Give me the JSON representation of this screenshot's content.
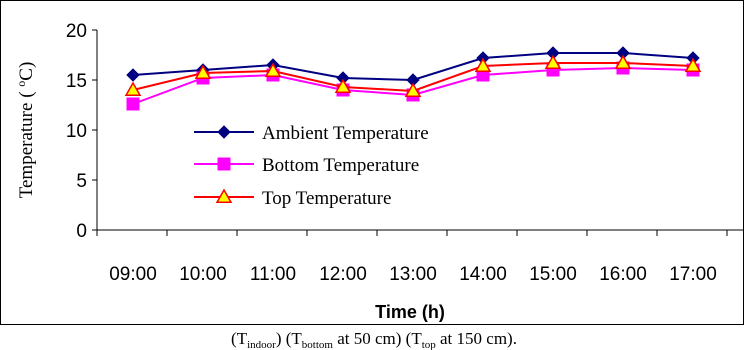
{
  "chart_data": {
    "type": "line",
    "categories": [
      "09:00",
      "10:00",
      "11:00",
      "12:00",
      "13:00",
      "14:00",
      "15:00",
      "16:00",
      "17:00"
    ],
    "series": [
      {
        "name": "Ambient Temperature",
        "values": [
          15.5,
          16.0,
          16.5,
          15.2,
          15.0,
          17.2,
          17.7,
          17.7,
          17.2
        ],
        "color": "#000080",
        "marker": "diamond"
      },
      {
        "name": "Bottom Temperature",
        "values": [
          12.6,
          15.2,
          15.5,
          14.0,
          13.5,
          15.5,
          16.0,
          16.2,
          16.0
        ],
        "color": "#ff00ff",
        "marker": "square"
      },
      {
        "name": "Top Temperature",
        "values": [
          14.0,
          15.7,
          15.9,
          14.3,
          13.9,
          16.4,
          16.7,
          16.7,
          16.4
        ],
        "color": "#ff0000",
        "marker": "triangle",
        "marker_fill": "#ffff00"
      }
    ],
    "xlabel": "Time (h)",
    "ylabel_main": "Temperature ( ",
    "ylabel_sup": "o",
    "ylabel_end": "C)",
    "ylim": [
      0,
      20
    ],
    "yticks": [
      0,
      5,
      10,
      15,
      20
    ],
    "grid": false,
    "legend_position": "center-left"
  },
  "caption": {
    "p1": "(T",
    "s1": "indoor",
    "p2": ") (T",
    "s2": "bottom",
    "p3": " at 50 cm) (T",
    "s3": "top",
    "p4": " at 150 cm)."
  }
}
